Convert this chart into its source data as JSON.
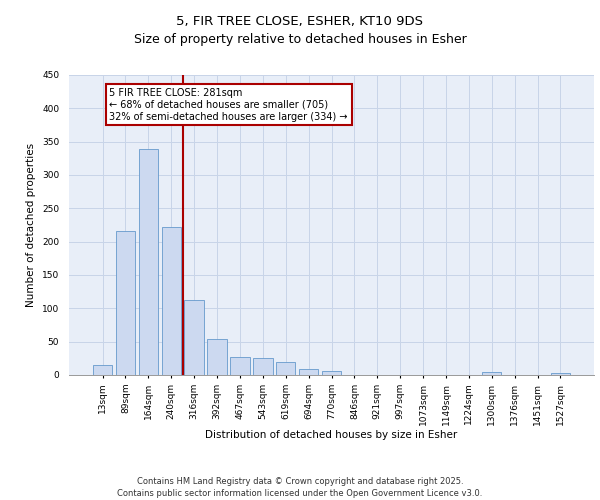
{
  "title1": "5, FIR TREE CLOSE, ESHER, KT10 9DS",
  "title2": "Size of property relative to detached houses in Esher",
  "xlabel": "Distribution of detached houses by size in Esher",
  "ylabel": "Number of detached properties",
  "categories": [
    "13sqm",
    "89sqm",
    "164sqm",
    "240sqm",
    "316sqm",
    "392sqm",
    "467sqm",
    "543sqm",
    "619sqm",
    "694sqm",
    "770sqm",
    "846sqm",
    "921sqm",
    "997sqm",
    "1073sqm",
    "1149sqm",
    "1224sqm",
    "1300sqm",
    "1376sqm",
    "1451sqm",
    "1527sqm"
  ],
  "values": [
    15,
    216,
    339,
    222,
    112,
    54,
    27,
    26,
    20,
    9,
    6,
    0,
    0,
    0,
    0,
    0,
    0,
    4,
    0,
    0,
    3
  ],
  "bar_color": "#ccd9f0",
  "bar_edge_color": "#6699cc",
  "vline_x": 3.5,
  "vline_color": "#aa0000",
  "annotation_text": "5 FIR TREE CLOSE: 281sqm\n← 68% of detached houses are smaller (705)\n32% of semi-detached houses are larger (334) →",
  "annotation_box_color": "#aa0000",
  "ylim": [
    0,
    450
  ],
  "yticks": [
    0,
    50,
    100,
    150,
    200,
    250,
    300,
    350,
    400,
    450
  ],
  "grid_color": "#c8d4e8",
  "background_color": "#e8eef8",
  "footer": "Contains HM Land Registry data © Crown copyright and database right 2025.\nContains public sector information licensed under the Open Government Licence v3.0.",
  "title_fontsize": 9.5,
  "axis_label_fontsize": 7.5,
  "tick_fontsize": 6.5,
  "footer_fontsize": 6,
  "annotation_fontsize": 7
}
